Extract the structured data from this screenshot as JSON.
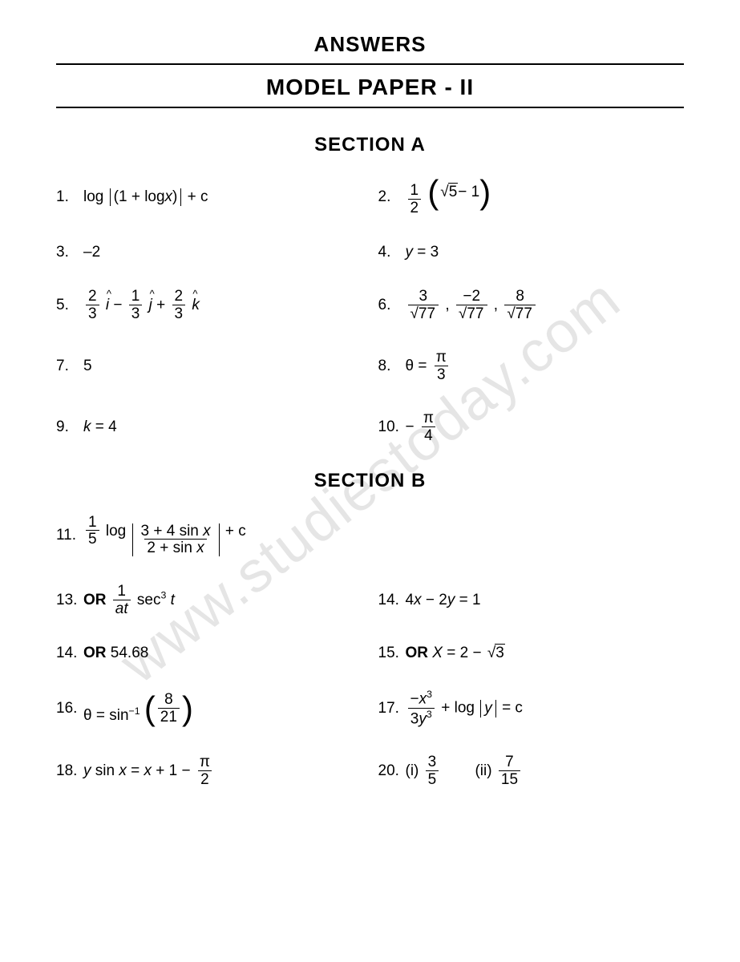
{
  "header": {
    "answers": "ANSWERS",
    "model": "MODEL  PAPER  -  II",
    "sectionA": "SECTION  A",
    "sectionB": "SECTION  B"
  },
  "watermark": "www.studiestoday.com",
  "a": {
    "n1": "1.",
    "v1_log": "log",
    "v1_inner": "(1 + log ",
    "v1_x": "x",
    "v1_close": ")",
    "v1_c": " + c",
    "n2": "2.",
    "v2_half_num": "1",
    "v2_half_den": "2",
    "v2_sqrt": "5",
    "v2_m1": " − 1",
    "n3": "3.",
    "v3": "–2",
    "n4": "4.",
    "v4_y": "y",
    "v4_eq": " = 3",
    "n5": "5.",
    "v5_a_num": "2",
    "v5_a_den": "3",
    "v5_i": "i",
    "v5_m": " − ",
    "v5_b_num": "1",
    "v5_b_den": "3",
    "v5_j": "j",
    "v5_p": " + ",
    "v5_c_num": "2",
    "v5_c_den": "3",
    "v5_k": "k",
    "n6": "6.",
    "v6_a_num": "3",
    "v6_a_den": "77",
    "v6_sep": ",   ",
    "v6_b_num": "−2",
    "v6_b_den": "77",
    "v6_c_num": "8",
    "v6_c_den": "77",
    "n7": "7.",
    "v7": "5",
    "n8": "8.",
    "v8_th": "θ = ",
    "v8_num": "π",
    "v8_den": "3",
    "n9": "9.",
    "v9_k": "k",
    "v9_eq": " = 4",
    "n10": "10.",
    "v10_m": "− ",
    "v10_num": "π",
    "v10_den": "4"
  },
  "b": {
    "n11": "11.",
    "v11_coef_num": "1",
    "v11_coef_den": "5",
    "v11_log": " log ",
    "v11_top": "3 + 4 sin ",
    "v11_x1": "x",
    "v11_bot": "2 + sin ",
    "v11_x2": "x",
    "v11_c": " + c",
    "n13": "13.",
    "v13_or": "OR ",
    "v13_num": "1",
    "v13_den_a": "at",
    "v13_sec": " sec",
    "v13_exp": "3",
    "v13_t": " t",
    "n14a": "14.",
    "v14a": "4",
    "v14a_x": "x",
    "v14a_m": " − 2",
    "v14a_y": "y",
    "v14a_eq": " = 1",
    "n14b": "14.",
    "v14b_or": "OR ",
    "v14b": "54.68",
    "n15": "15.",
    "v15_or": "OR  ",
    "v15_x": "X",
    "v15_eq": " = 2 − ",
    "v15_sqrt": "3",
    "n16": "16.",
    "v16_th": "θ = sin",
    "v16_exp": "−1",
    "v16_num": "8",
    "v16_den": "21",
    "n17": "17.",
    "v17_top": "−",
    "v17_x": "x",
    "v17_top_exp": "3",
    "v17_bot": "3",
    "v17_y": "y",
    "v17_bot_exp": "3",
    "v17_plus": " + log ",
    "v17_absy": "y",
    "v17_eq": " = c",
    "n18": "18.",
    "v18_y": "y",
    "v18_sin": " sin ",
    "v18_x1": "x",
    "v18_eq": " = ",
    "v18_x2": "x",
    "v18_p1": " + 1 − ",
    "v18_num": "π",
    "v18_den": "2",
    "n20": "20.",
    "v20_i": "(i) ",
    "v20_i_num": "3",
    "v20_i_den": "5",
    "v20_sp": "      ",
    "v20_ii": "(ii) ",
    "v20_ii_num": "7",
    "v20_ii_den": "15"
  }
}
